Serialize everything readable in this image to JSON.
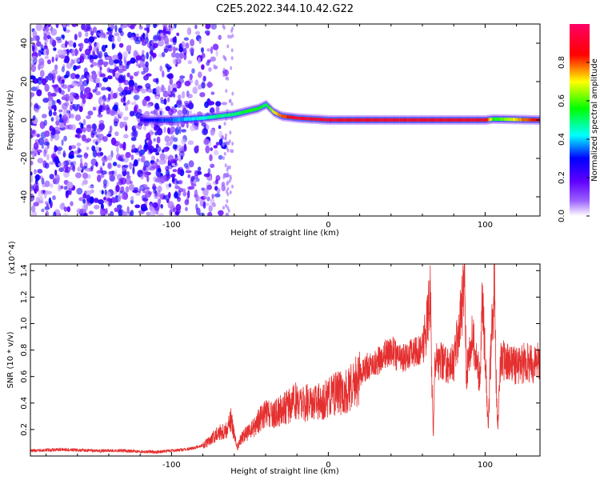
{
  "figure": {
    "title": "C2E5.2022.344.10.42.G22"
  },
  "chart_data": [
    {
      "type": "heatmap",
      "xlabel": "Height of straight line (km)",
      "ylabel": "Frequency (Hz)",
      "xlim": [
        -190,
        135
      ],
      "ylim": [
        -50,
        50
      ],
      "xticks": [
        -100,
        0,
        100
      ],
      "xtick_labels": [
        "-100",
        "0",
        "100"
      ],
      "yticks": [
        -40,
        -20,
        0,
        20,
        40
      ],
      "ytick_labels": [
        "-40",
        "-20",
        "0",
        "20",
        "40"
      ],
      "colorbar": {
        "label": "Normalized spectral amplitude",
        "range": [
          0,
          1
        ],
        "ticks": [
          0,
          0.2,
          0.4,
          0.6,
          0.8
        ],
        "tick_labels": [
          "0.0",
          "0.2",
          "0.4",
          "0.6",
          "0.8"
        ],
        "colors": [
          "#ffffff",
          "#6600ff",
          "#0000ff",
          "#00ffff",
          "#00ff00",
          "#ffff00",
          "#ff0000",
          "#ff0066"
        ]
      },
      "trace": {
        "x": [
          -120,
          -100,
          -90,
          -80,
          -70,
          -60,
          -50,
          -45,
          -40,
          -35,
          -30,
          -20,
          -10,
          0,
          20,
          40,
          60,
          80,
          95,
          100,
          105,
          135
        ],
        "y": [
          0,
          0,
          0.5,
          1,
          2,
          3,
          5,
          6,
          8,
          4,
          2,
          1,
          0.5,
          0,
          0,
          0,
          0,
          0,
          0,
          0,
          0.5,
          0
        ],
        "amplitude": [
          0.3,
          0.4,
          0.45,
          0.5,
          0.55,
          0.55,
          0.6,
          0.6,
          0.55,
          0.75,
          0.85,
          0.95,
          0.95,
          0.95,
          0.95,
          0.95,
          0.95,
          0.95,
          0.95,
          0.95,
          0.6,
          0.95
        ]
      },
      "grid": false
    },
    {
      "type": "line",
      "xlabel": "Height of straight line (km)",
      "ylabel": "SNR (10 * v/v)",
      "y_multiplier": "(x10^4)",
      "xlim": [
        -190,
        135
      ],
      "ylim": [
        0,
        14500
      ],
      "xticks": [
        -100,
        0,
        100
      ],
      "xtick_labels": [
        "-100",
        "0",
        "100"
      ],
      "yticks": [
        2000,
        4000,
        6000,
        8000,
        10000,
        12000,
        14000
      ],
      "ytick_labels": [
        "0.2",
        "0.4",
        "0.6",
        "0.8",
        "1.0",
        "1.2",
        "1.4"
      ],
      "color": "#e53030",
      "series": [
        {
          "x": [
            -190,
            -170,
            -150,
            -130,
            -110,
            -90,
            -80,
            -75,
            -70,
            -65,
            -62,
            -60,
            -58,
            -55,
            -50,
            -45,
            -40,
            -35,
            -30,
            -25,
            -20,
            -15,
            -10,
            -5,
            0,
            5,
            10,
            15,
            20,
            25,
            30,
            35,
            40,
            45,
            50,
            55,
            60,
            62,
            64,
            65,
            66,
            67,
            68,
            70,
            75,
            80,
            85,
            87,
            88,
            90,
            92,
            95,
            97,
            98,
            100,
            102,
            103,
            105,
            106,
            107,
            108,
            110,
            112,
            115,
            120,
            125,
            130,
            135
          ],
          "y": [
            400,
            500,
            400,
            400,
            300,
            500,
            800,
            1200,
            1800,
            2000,
            2800,
            1500,
            600,
            1500,
            1800,
            2600,
            3200,
            3000,
            3500,
            3800,
            4200,
            3900,
            4300,
            4000,
            4400,
            4700,
            4800,
            5200,
            6000,
            6800,
            7000,
            7500,
            8000,
            7400,
            7500,
            7800,
            8200,
            9000,
            11500,
            12600,
            6000,
            1500,
            7500,
            7200,
            6800,
            7000,
            11000,
            13800,
            6000,
            8000,
            9000,
            7000,
            5500,
            12000,
            8000,
            1800,
            6000,
            11000,
            14300,
            6000,
            2000,
            7500,
            7200,
            7000,
            6900,
            7000,
            7000,
            7100
          ]
        }
      ],
      "grid": false
    }
  ]
}
